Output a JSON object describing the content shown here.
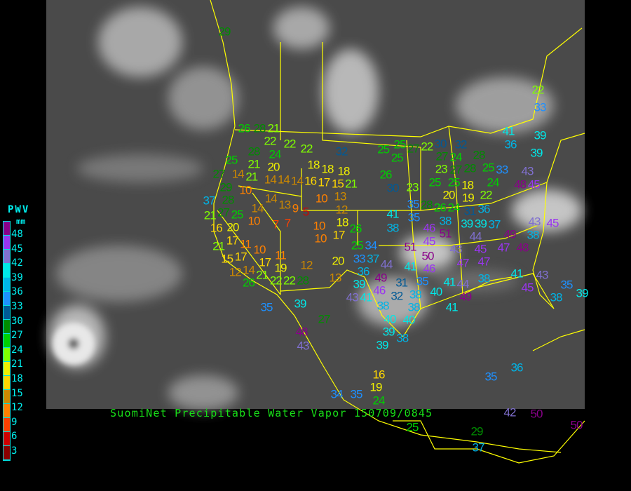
{
  "title": "SuomiNet Precipitable Water Vapor 150709/0845",
  "legend": {
    "title": "PWV",
    "unit": "mm",
    "labels": [
      "48",
      "45",
      "42",
      "39",
      "36",
      "33",
      "30",
      "27",
      "24",
      "21",
      "18",
      "15",
      "12",
      "9",
      "6",
      "3"
    ],
    "colors": [
      "#8a008a",
      "#9a35f0",
      "#8070d0",
      "#00e8e8",
      "#00b4e6",
      "#1e90ff",
      "#005a96",
      "#008c00",
      "#00d000",
      "#80ff00",
      "#f0f000",
      "#ffd700",
      "#cc8800",
      "#ff8000",
      "#ff4000",
      "#d00000",
      "#8b0000"
    ]
  },
  "map": {
    "ocean_land_color": "#4a4a4a",
    "border_color": "#ffff00"
  },
  "stations": [
    "29",
    "26",
    "28",
    "21",
    "22",
    "24",
    "22",
    "22",
    "32",
    "25",
    "28",
    "21",
    "20",
    "21",
    "27",
    "14",
    "14",
    "14",
    "14",
    "16",
    "17",
    "18",
    "18",
    "18",
    "29",
    "10",
    "15",
    "21",
    "37",
    "28",
    "14",
    "13",
    "9",
    "10",
    "13",
    "12",
    "27",
    "5",
    "14",
    "18",
    "21",
    "25",
    "10",
    "7",
    "7",
    "10",
    "17",
    "26",
    "16",
    "20",
    "17",
    "10",
    "21",
    "11",
    "10",
    "25",
    "34",
    "15",
    "17",
    "12",
    "17",
    "11",
    "19",
    "12",
    "20",
    "33",
    "37",
    "14",
    "26",
    "21",
    "22",
    "22",
    "28",
    "13",
    "36",
    "25",
    "25",
    "25",
    "27",
    "22",
    "30",
    "32",
    "27",
    "24",
    "28",
    "23",
    "27",
    "28",
    "25",
    "33",
    "26",
    "30",
    "23",
    "25",
    "25",
    "24",
    "22",
    "20",
    "18",
    "19",
    "35",
    "28",
    "26",
    "24",
    "31",
    "36",
    "41",
    "35",
    "38",
    "39",
    "38",
    "46",
    "51",
    "39",
    "37",
    "45",
    "49",
    "38",
    "51",
    "44",
    "43",
    "45",
    "47",
    "48",
    "50",
    "44",
    "41",
    "47",
    "47",
    "49",
    "46",
    "39",
    "43",
    "41",
    "31",
    "32",
    "38",
    "35",
    "38",
    "46",
    "45",
    "41",
    "43",
    "45",
    "38",
    "35",
    "39",
    "38",
    "44",
    "49",
    "41",
    "40",
    "41",
    "38",
    "40",
    "40",
    "39",
    "38",
    "39",
    "35",
    "39",
    "27",
    "48",
    "43",
    "16",
    "19",
    "34",
    "35",
    "24",
    "25",
    "29",
    "37",
    "42",
    "50",
    "50",
    "36",
    "35",
    "22",
    "33",
    "41",
    "36",
    "39",
    "39",
    "43",
    "45",
    "48",
    "43"
  ]
}
